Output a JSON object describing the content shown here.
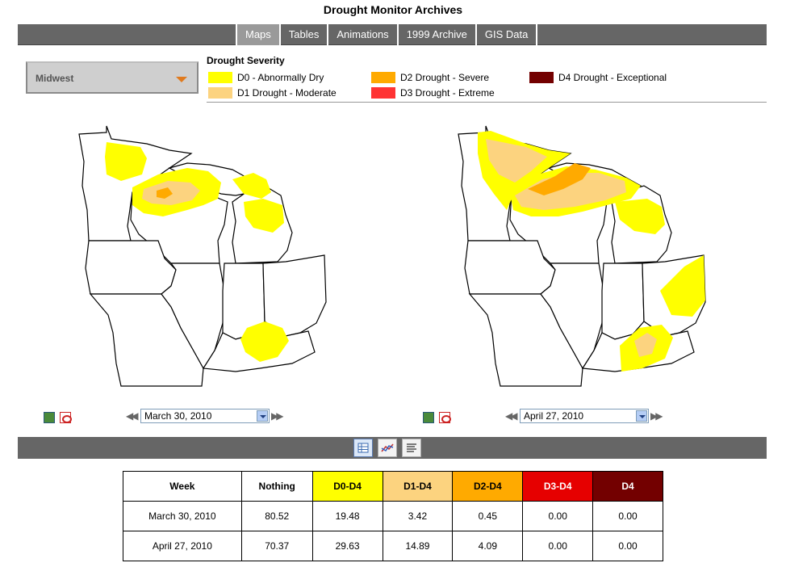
{
  "page_title": "Drought Monitor Archives",
  "nav": {
    "tabs": [
      "Maps",
      "Tables",
      "Animations",
      "1999 Archive",
      "GIS Data"
    ],
    "active": "Maps"
  },
  "region_select": {
    "value": "Midwest"
  },
  "legend": {
    "title": "Drought Severity",
    "items": [
      {
        "label": "D0 - Abnormally Dry",
        "color": "#ffff00"
      },
      {
        "label": "D1 Drought - Moderate",
        "color": "#fcd37f"
      },
      {
        "label": "D2 Drought - Severe",
        "color": "#ffaa00"
      },
      {
        "label": "D3 Drought - Extreme",
        "color": "#ff3333"
      },
      {
        "label": "D4 Drought - Exceptional",
        "color": "#730000"
      }
    ]
  },
  "maps": {
    "left": {
      "date": "March 30, 2010"
    },
    "right": {
      "date": "April 27, 2010"
    }
  },
  "icons": {
    "save_image": "image-icon",
    "pdf": "pdf-icon",
    "prev": "double-left-arrow-icon",
    "next": "double-right-arrow-icon",
    "view_table": "table-view-icon",
    "view_chart": "chart-view-icon",
    "view_text": "text-view-icon"
  },
  "table": {
    "headers": [
      "Week",
      "Nothing",
      "D0-D4",
      "D1-D4",
      "D2-D4",
      "D3-D4",
      "D4"
    ],
    "rows": [
      [
        "March 30, 2010",
        "80.52",
        "19.48",
        "3.42",
        "0.45",
        "0.00",
        "0.00"
      ],
      [
        "April 27, 2010",
        "70.37",
        "29.63",
        "14.89",
        "4.09",
        "0.00",
        "0.00"
      ]
    ]
  }
}
